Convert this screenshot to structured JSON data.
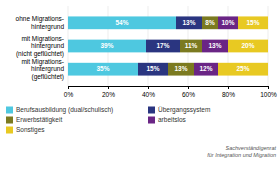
{
  "chart_data": {
    "type": "bar",
    "orientation": "horizontal",
    "stacked": true,
    "categories": [
      "ohne Migrations-\nhintergrund",
      "mit Migrations-\nhintergrund\n(nicht geflüchtet)",
      "mit Migrations-\nhintergrund\n(geflüchtet)"
    ],
    "series": [
      {
        "name": "Berufsausbildung (dual/schulisch)",
        "color": "#4ec8e0",
        "values": [
          54,
          39,
          35
        ],
        "value_labels": [
          "54%",
          "39%",
          "35%"
        ]
      },
      {
        "name": "Übergangssystem",
        "color": "#2a3580",
        "values": [
          13,
          17,
          15
        ],
        "value_labels": [
          "13%",
          "17%",
          "15%"
        ]
      },
      {
        "name": "Erwerbstätigkeit",
        "color": "#7b7a20",
        "values": [
          8,
          11,
          13
        ],
        "value_labels": [
          "8%",
          "11%",
          "13%"
        ]
      },
      {
        "name": "arbeitslos",
        "color": "#6a2585",
        "values": [
          10,
          13,
          12
        ],
        "value_labels": [
          "10%",
          "13%",
          "12%"
        ]
      },
      {
        "name": "Sonstiges",
        "color": "#e8c922",
        "values": [
          15,
          20,
          25
        ],
        "value_labels": [
          "15%",
          "20%",
          "25%"
        ]
      }
    ],
    "xlim": [
      0,
      100
    ],
    "xticks": [
      {
        "value": 0,
        "label": "0%"
      },
      {
        "value": 20,
        "label": "20%"
      },
      {
        "value": 40,
        "label": "40%"
      },
      {
        "value": 60,
        "label": "60%"
      },
      {
        "value": 80,
        "label": "80%"
      },
      {
        "value": 100,
        "label": "100%"
      }
    ],
    "grid": true,
    "data_labels": true,
    "legend": "bottom",
    "annotations": [
      "Sachverständigenrat\nfür Integration und Migration"
    ]
  }
}
